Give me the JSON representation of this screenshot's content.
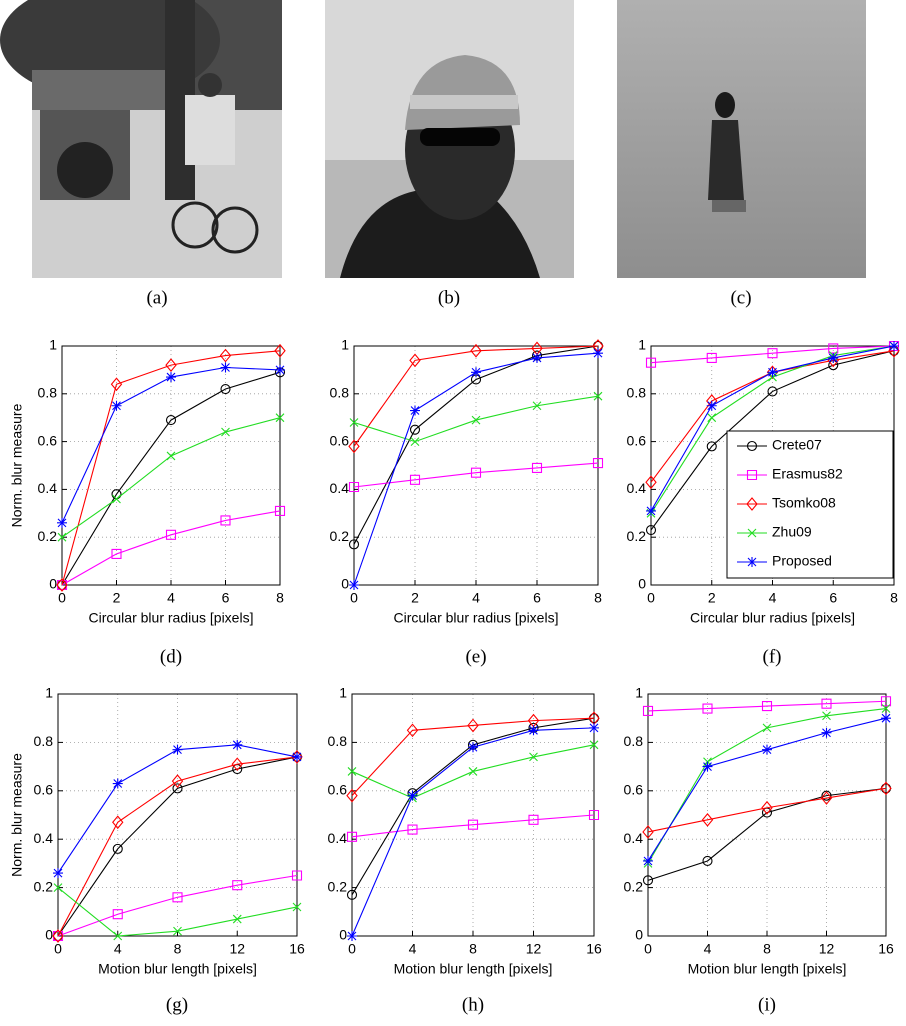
{
  "images": [
    {
      "caption": "(a)"
    },
    {
      "caption": "(b)"
    },
    {
      "caption": "(c)"
    }
  ],
  "chart_data": [
    {
      "type": "line",
      "caption": "(d)",
      "xlabel": "Circular blur radius [pixels]",
      "ylabel": "Norm. blur measure",
      "x": [
        0,
        2,
        4,
        6,
        8
      ],
      "xlim": [
        0,
        8
      ],
      "xticks": [
        0,
        2,
        4,
        6,
        8
      ],
      "ylim": [
        0,
        1
      ],
      "yticks": [
        0,
        0.2,
        0.4,
        0.6,
        0.8,
        1
      ],
      "grid": true,
      "legend": false,
      "series": [
        {
          "name": "Crete07",
          "color": "#000000",
          "marker": "circle",
          "values": [
            0,
            0.38,
            0.69,
            0.82,
            0.89
          ]
        },
        {
          "name": "Erasmus82",
          "color": "#ff00ff",
          "marker": "square",
          "values": [
            0,
            0.13,
            0.21,
            0.27,
            0.31
          ]
        },
        {
          "name": "Tsomko08",
          "color": "#ff0000",
          "marker": "diamond",
          "values": [
            0,
            0.84,
            0.92,
            0.96,
            0.98
          ]
        },
        {
          "name": "Zhu09",
          "color": "#22dd22",
          "marker": "x",
          "values": [
            0.2,
            0.36,
            0.54,
            0.64,
            0.7
          ]
        },
        {
          "name": "Proposed",
          "color": "#0000ff",
          "marker": "asterisk",
          "values": [
            0.26,
            0.75,
            0.87,
            0.91,
            0.9
          ]
        }
      ]
    },
    {
      "type": "line",
      "caption": "(e)",
      "xlabel": "Circular blur radius [pixels]",
      "x": [
        0,
        2,
        4,
        6,
        8
      ],
      "xlim": [
        0,
        8
      ],
      "xticks": [
        0,
        2,
        4,
        6,
        8
      ],
      "ylim": [
        0,
        1
      ],
      "yticks": [
        0,
        0.2,
        0.4,
        0.6,
        0.8,
        1
      ],
      "grid": true,
      "legend": false,
      "series": [
        {
          "name": "Crete07",
          "color": "#000000",
          "marker": "circle",
          "values": [
            0.17,
            0.65,
            0.86,
            0.96,
            1.0
          ]
        },
        {
          "name": "Erasmus82",
          "color": "#ff00ff",
          "marker": "square",
          "values": [
            0.41,
            0.44,
            0.47,
            0.49,
            0.51
          ]
        },
        {
          "name": "Tsomko08",
          "color": "#ff0000",
          "marker": "diamond",
          "values": [
            0.58,
            0.94,
            0.98,
            0.99,
            1.0
          ]
        },
        {
          "name": "Zhu09",
          "color": "#22dd22",
          "marker": "x",
          "values": [
            0.68,
            0.6,
            0.69,
            0.75,
            0.79
          ]
        },
        {
          "name": "Proposed",
          "color": "#0000ff",
          "marker": "asterisk",
          "values": [
            0,
            0.73,
            0.89,
            0.95,
            0.97
          ]
        }
      ]
    },
    {
      "type": "line",
      "caption": "(f)",
      "xlabel": "Circular blur radius [pixels]",
      "x": [
        0,
        2,
        4,
        6,
        8
      ],
      "xlim": [
        0,
        8
      ],
      "xticks": [
        0,
        2,
        4,
        6,
        8
      ],
      "ylim": [
        0,
        1
      ],
      "yticks": [
        0,
        0.2,
        0.4,
        0.6,
        0.8,
        1
      ],
      "grid": true,
      "legend": "lower right",
      "series": [
        {
          "name": "Crete07",
          "color": "#000000",
          "marker": "circle",
          "values": [
            0.23,
            0.58,
            0.81,
            0.92,
            0.98
          ]
        },
        {
          "name": "Erasmus82",
          "color": "#ff00ff",
          "marker": "square",
          "values": [
            0.93,
            0.95,
            0.97,
            0.99,
            1.0
          ]
        },
        {
          "name": "Tsomko08",
          "color": "#ff0000",
          "marker": "diamond",
          "values": [
            0.43,
            0.77,
            0.89,
            0.94,
            0.98
          ]
        },
        {
          "name": "Zhu09",
          "color": "#22dd22",
          "marker": "x",
          "values": [
            0.3,
            0.7,
            0.87,
            0.96,
            1.0
          ]
        },
        {
          "name": "Proposed",
          "color": "#0000ff",
          "marker": "asterisk",
          "values": [
            0.31,
            0.75,
            0.89,
            0.95,
            1.0
          ]
        }
      ]
    },
    {
      "type": "line",
      "caption": "(g)",
      "xlabel": "Motion blur length [pixels]",
      "ylabel": "Norm. blur measure",
      "x": [
        0,
        4,
        8,
        12,
        16
      ],
      "xlim": [
        0,
        16
      ],
      "xticks": [
        0,
        4,
        8,
        12,
        16
      ],
      "ylim": [
        0,
        1
      ],
      "yticks": [
        0,
        0.2,
        0.4,
        0.6,
        0.8,
        1
      ],
      "grid": true,
      "legend": false,
      "series": [
        {
          "name": "Crete07",
          "color": "#000000",
          "marker": "circle",
          "values": [
            0,
            0.36,
            0.61,
            0.69,
            0.74
          ]
        },
        {
          "name": "Erasmus82",
          "color": "#ff00ff",
          "marker": "square",
          "values": [
            0,
            0.09,
            0.16,
            0.21,
            0.25
          ]
        },
        {
          "name": "Tsomko08",
          "color": "#ff0000",
          "marker": "diamond",
          "values": [
            0,
            0.47,
            0.64,
            0.71,
            0.74
          ]
        },
        {
          "name": "Zhu09",
          "color": "#22dd22",
          "marker": "x",
          "values": [
            0.2,
            0,
            0.02,
            0.07,
            0.12
          ]
        },
        {
          "name": "Proposed",
          "color": "#0000ff",
          "marker": "asterisk",
          "values": [
            0.26,
            0.63,
            0.77,
            0.79,
            0.74
          ]
        }
      ]
    },
    {
      "type": "line",
      "caption": "(h)",
      "xlabel": "Motion blur length [pixels]",
      "x": [
        0,
        4,
        8,
        12,
        16
      ],
      "xlim": [
        0,
        16
      ],
      "xticks": [
        0,
        4,
        8,
        12,
        16
      ],
      "ylim": [
        0,
        1
      ],
      "yticks": [
        0,
        0.2,
        0.4,
        0.6,
        0.8,
        1
      ],
      "grid": true,
      "legend": false,
      "series": [
        {
          "name": "Crete07",
          "color": "#000000",
          "marker": "circle",
          "values": [
            0.17,
            0.59,
            0.79,
            0.86,
            0.9
          ]
        },
        {
          "name": "Erasmus82",
          "color": "#ff00ff",
          "marker": "square",
          "values": [
            0.41,
            0.44,
            0.46,
            0.48,
            0.5
          ]
        },
        {
          "name": "Tsomko08",
          "color": "#ff0000",
          "marker": "diamond",
          "values": [
            0.58,
            0.85,
            0.87,
            0.89,
            0.9
          ]
        },
        {
          "name": "Zhu09",
          "color": "#22dd22",
          "marker": "x",
          "values": [
            0.68,
            0.57,
            0.68,
            0.74,
            0.79
          ]
        },
        {
          "name": "Proposed",
          "color": "#0000ff",
          "marker": "asterisk",
          "values": [
            0,
            0.58,
            0.78,
            0.85,
            0.86
          ]
        }
      ]
    },
    {
      "type": "line",
      "caption": "(i)",
      "xlabel": "Motion blur length [pixels]",
      "x": [
        0,
        4,
        8,
        12,
        16
      ],
      "xlim": [
        0,
        16
      ],
      "xticks": [
        0,
        4,
        8,
        12,
        16
      ],
      "ylim": [
        0,
        1
      ],
      "yticks": [
        0,
        0.2,
        0.4,
        0.6,
        0.8,
        1
      ],
      "grid": true,
      "legend": false,
      "series": [
        {
          "name": "Crete07",
          "color": "#000000",
          "marker": "circle",
          "values": [
            0.23,
            0.31,
            0.51,
            0.58,
            0.61
          ]
        },
        {
          "name": "Erasmus82",
          "color": "#ff00ff",
          "marker": "square",
          "values": [
            0.93,
            0.94,
            0.95,
            0.96,
            0.97
          ]
        },
        {
          "name": "Tsomko08",
          "color": "#ff0000",
          "marker": "diamond",
          "values": [
            0.43,
            0.48,
            0.53,
            0.57,
            0.61
          ]
        },
        {
          "name": "Zhu09",
          "color": "#22dd22",
          "marker": "x",
          "values": [
            0.3,
            0.72,
            0.86,
            0.91,
            0.94
          ]
        },
        {
          "name": "Proposed",
          "color": "#0000ff",
          "marker": "asterisk",
          "values": [
            0.31,
            0.7,
            0.77,
            0.84,
            0.9
          ]
        }
      ]
    }
  ]
}
